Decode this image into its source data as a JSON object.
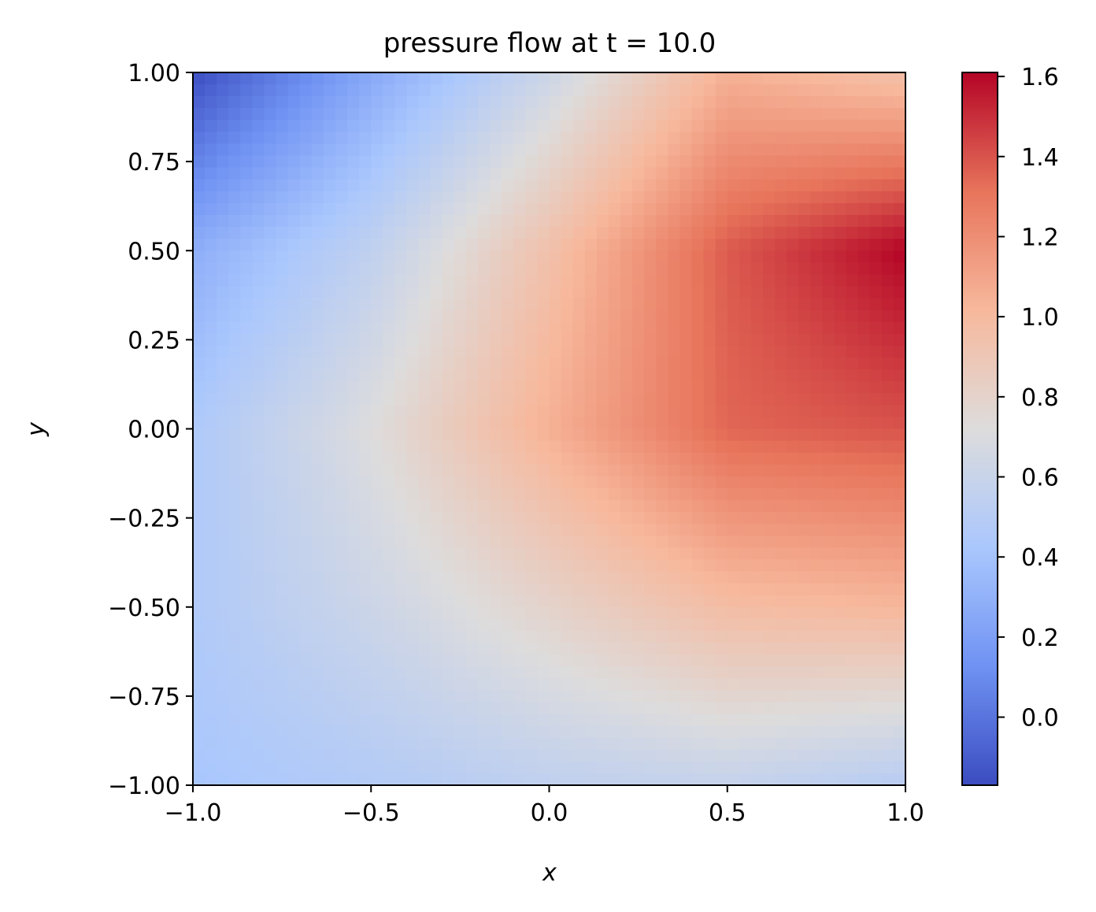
{
  "chart_data": {
    "type": "heatmap",
    "title": "pressure flow at t = 10.0",
    "xlabel": "x",
    "ylabel": "y",
    "xlim": [
      -1.0,
      1.0
    ],
    "ylim": [
      -1.0,
      1.0
    ],
    "xticks": [
      {
        "value": -1.0,
        "label": "−1.0"
      },
      {
        "value": -0.5,
        "label": "−0.5"
      },
      {
        "value": 0.0,
        "label": "0.0"
      },
      {
        "value": 0.5,
        "label": "0.5"
      },
      {
        "value": 1.0,
        "label": "1.0"
      }
    ],
    "yticks": [
      {
        "value": 1.0,
        "label": "1.00"
      },
      {
        "value": 0.75,
        "label": "0.75"
      },
      {
        "value": 0.5,
        "label": "0.50"
      },
      {
        "value": 0.25,
        "label": "0.25"
      },
      {
        "value": 0.0,
        "label": "0.00"
      },
      {
        "value": -0.25,
        "label": "−0.25"
      },
      {
        "value": -0.5,
        "label": "−0.50"
      },
      {
        "value": -0.75,
        "label": "−0.75"
      },
      {
        "value": -1.0,
        "label": "−1.00"
      }
    ],
    "colormap": "coolwarm",
    "colormap_stops": [
      "#3b4cc0",
      "#6f92f3",
      "#aac7fd",
      "#dddcdc",
      "#f7b89c",
      "#e7745b",
      "#b40426"
    ],
    "colorbar": {
      "range": [
        -0.17,
        1.61
      ],
      "ticks": [
        {
          "value": 0.0,
          "label": "0.0"
        },
        {
          "value": 0.2,
          "label": "0.2"
        },
        {
          "value": 0.4,
          "label": "0.4"
        },
        {
          "value": 0.6,
          "label": "0.6"
        },
        {
          "value": 0.8,
          "label": "0.8"
        },
        {
          "value": 1.0,
          "label": "1.0"
        },
        {
          "value": 1.2,
          "label": "1.2"
        },
        {
          "value": 1.4,
          "label": "1.4"
        },
        {
          "value": 1.6,
          "label": "1.6"
        }
      ]
    },
    "field_samples": {
      "x": [
        -1.0,
        -0.5,
        0.0,
        0.5,
        1.0
      ],
      "y": [
        1.0,
        0.5,
        0.0,
        -0.5,
        -1.0
      ],
      "z": [
        [
          -0.16,
          0.25,
          0.62,
          1.05,
          0.95
        ],
        [
          0.28,
          0.55,
          0.95,
          1.38,
          1.61
        ],
        [
          0.45,
          0.72,
          1.05,
          1.35,
          1.4
        ],
        [
          0.46,
          0.62,
          0.8,
          0.98,
          1.02
        ],
        [
          0.42,
          0.48,
          0.55,
          0.58,
          0.5
        ]
      ]
    }
  }
}
